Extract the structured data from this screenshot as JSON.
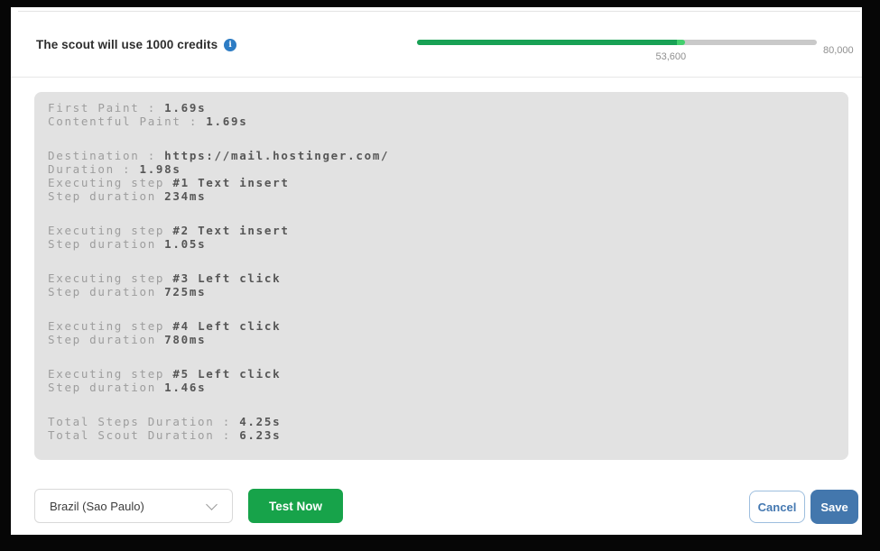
{
  "header": {
    "credits_text": "The scout will use 1000 credits",
    "progress": {
      "current": 53600,
      "max": 80000,
      "current_label": "53,600",
      "max_label": "80,000",
      "fill_color": "#18a155",
      "tip_color": "#43cf6d",
      "track_color": "#c9c9c9"
    }
  },
  "console": {
    "groups": [
      {
        "lines": [
          {
            "label": "First Paint : ",
            "value": "1.69s"
          },
          {
            "label": "Contentful Paint : ",
            "value": "1.69s"
          }
        ]
      },
      {
        "lines": [
          {
            "label": "Destination : ",
            "value": "https://mail.hostinger.com/"
          },
          {
            "label": "Duration : ",
            "value": "1.98s"
          },
          {
            "label": "Executing step ",
            "value": "#1 Text insert"
          },
          {
            "label": "Step duration ",
            "value": "234ms"
          }
        ]
      },
      {
        "lines": [
          {
            "label": "Executing step ",
            "value": "#2 Text insert"
          },
          {
            "label": "Step duration ",
            "value": "1.05s"
          }
        ]
      },
      {
        "lines": [
          {
            "label": "Executing step ",
            "value": "#3 Left click"
          },
          {
            "label": "Step duration ",
            "value": "725ms"
          }
        ]
      },
      {
        "lines": [
          {
            "label": "Executing step ",
            "value": "#4 Left click"
          },
          {
            "label": "Step duration ",
            "value": "780ms"
          }
        ]
      },
      {
        "lines": [
          {
            "label": "Executing step ",
            "value": "#5 Left click"
          },
          {
            "label": "Step duration ",
            "value": "1.46s"
          }
        ]
      },
      {
        "lines": [
          {
            "label": "Total Steps Duration : ",
            "value": "4.25s"
          },
          {
            "label": "Total Scout Duration : ",
            "value": "6.23s"
          }
        ]
      }
    ]
  },
  "footer": {
    "region_select": {
      "value": "Brazil (Sao Paulo)"
    },
    "test_button_label": "Test Now",
    "cancel_button_label": "Cancel",
    "save_button_label": "Save",
    "test_button_color": "#17a34a",
    "save_button_color": "#4377ad",
    "cancel_border_color": "#9dbede",
    "cancel_text_color": "#4478b1"
  }
}
